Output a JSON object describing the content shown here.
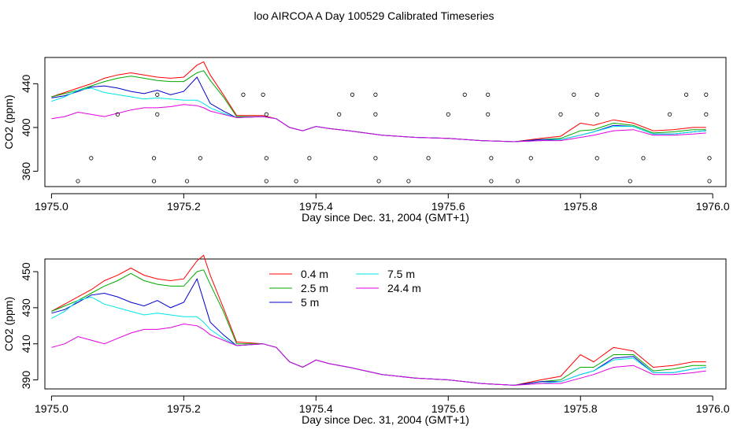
{
  "title": "loo AIRCOA A  Day 100529  Calibrated Timeseries",
  "chart_data": [
    {
      "type": "line",
      "xlabel": "Day since Dec. 31, 2004 (GMT+1)",
      "ylabel": "CO2 (ppm)",
      "xlim": [
        1974.99,
        1976.02
      ],
      "ylim": [
        346,
        464
      ],
      "xticks": [
        1975.0,
        1975.2,
        1975.4,
        1975.6,
        1975.8,
        1976.0
      ],
      "xtick_labels": [
        "1975.0",
        "1975.2",
        "1975.4",
        "1975.6",
        "1975.8",
        "1976.0"
      ],
      "yticks": [
        360,
        400,
        440
      ],
      "ytick_labels": [
        "360",
        "400",
        "440"
      ],
      "grid": false,
      "legend": "none",
      "series": [
        {
          "name": "0.4 m",
          "color": "#ff0000",
          "x": [
            1975.0,
            1975.02,
            1975.04,
            1975.06,
            1975.08,
            1975.1,
            1975.12,
            1975.14,
            1975.16,
            1975.18,
            1975.2,
            1975.22,
            1975.23,
            1975.24,
            1975.26,
            1975.28,
            1975.32,
            1975.34,
            1975.36,
            1975.38,
            1975.4,
            1975.42,
            1975.45,
            1975.5,
            1975.55,
            1975.6,
            1975.65,
            1975.7,
            1975.74,
            1975.77,
            1975.8,
            1975.82,
            1975.85,
            1975.88,
            1975.91,
            1975.94,
            1975.97,
            1975.99
          ],
          "y": [
            428,
            432,
            436,
            440,
            445,
            448,
            450,
            448,
            446,
            445,
            446,
            457,
            460,
            448,
            430,
            411,
            411,
            408,
            400,
            397,
            401,
            399,
            397,
            393,
            391,
            390,
            388,
            387,
            390,
            392,
            404,
            402,
            407,
            404,
            397,
            398,
            400,
            400
          ]
        },
        {
          "name": "2.5 m",
          "color": "#00aa00",
          "x": [
            1975.0,
            1975.02,
            1975.04,
            1975.06,
            1975.08,
            1975.1,
            1975.12,
            1975.14,
            1975.16,
            1975.18,
            1975.2,
            1975.22,
            1975.23,
            1975.24,
            1975.26,
            1975.28,
            1975.32,
            1975.34,
            1975.36,
            1975.38,
            1975.4,
            1975.42,
            1975.45,
            1975.5,
            1975.55,
            1975.6,
            1975.65,
            1975.7,
            1975.74,
            1975.77,
            1975.8,
            1975.82,
            1975.85,
            1975.88,
            1975.91,
            1975.94,
            1975.97,
            1975.99
          ],
          "y": [
            428,
            431,
            434,
            438,
            442,
            445,
            447,
            445,
            443,
            442,
            442,
            450,
            452,
            443,
            428,
            410,
            410,
            408,
            400,
            397,
            401,
            399,
            397,
            393,
            391,
            390,
            388,
            387,
            389,
            390,
            397,
            398,
            404,
            402,
            395,
            396,
            398,
            398
          ]
        },
        {
          "name": "5 m",
          "color": "#0000cc",
          "x": [
            1975.0,
            1975.02,
            1975.04,
            1975.06,
            1975.08,
            1975.1,
            1975.12,
            1975.14,
            1975.16,
            1975.18,
            1975.2,
            1975.22,
            1975.23,
            1975.24,
            1975.26,
            1975.28,
            1975.32,
            1975.34,
            1975.36,
            1975.38,
            1975.4,
            1975.42,
            1975.45,
            1975.5,
            1975.55,
            1975.6,
            1975.65,
            1975.7,
            1975.74,
            1975.77,
            1975.8,
            1975.82,
            1975.85,
            1975.88,
            1975.91,
            1975.94,
            1975.97,
            1975.99
          ],
          "y": [
            427,
            429,
            433,
            437,
            438,
            436,
            433,
            431,
            434,
            430,
            433,
            446,
            434,
            422,
            415,
            409,
            410,
            408,
            400,
            397,
            401,
            399,
            397,
            393,
            391,
            390,
            388,
            387,
            389,
            389,
            393,
            396,
            402,
            401,
            394,
            394,
            396,
            397
          ]
        },
        {
          "name": "7.5 m",
          "color": "#00e5e5",
          "x": [
            1975.0,
            1975.02,
            1975.04,
            1975.06,
            1975.08,
            1975.1,
            1975.12,
            1975.14,
            1975.16,
            1975.18,
            1975.2,
            1975.22,
            1975.23,
            1975.24,
            1975.26,
            1975.28,
            1975.32,
            1975.34,
            1975.36,
            1975.38,
            1975.4,
            1975.42,
            1975.45,
            1975.5,
            1975.55,
            1975.6,
            1975.65,
            1975.7,
            1975.74,
            1975.77,
            1975.8,
            1975.82,
            1975.85,
            1975.88,
            1975.91,
            1975.94,
            1975.97,
            1975.99
          ],
          "y": [
            424,
            428,
            434,
            436,
            432,
            430,
            428,
            426,
            427,
            426,
            425,
            425,
            422,
            418,
            413,
            409,
            410,
            408,
            400,
            397,
            401,
            399,
            397,
            393,
            391,
            390,
            388,
            387,
            388,
            389,
            393,
            396,
            401,
            401,
            394,
            394,
            396,
            397
          ]
        },
        {
          "name": "24.4 m",
          "color": "#e000e0",
          "x": [
            1975.0,
            1975.02,
            1975.04,
            1975.06,
            1975.08,
            1975.1,
            1975.12,
            1975.14,
            1975.16,
            1975.18,
            1975.2,
            1975.22,
            1975.23,
            1975.24,
            1975.26,
            1975.28,
            1975.32,
            1975.34,
            1975.36,
            1975.38,
            1975.4,
            1975.42,
            1975.45,
            1975.5,
            1975.55,
            1975.6,
            1975.65,
            1975.7,
            1975.74,
            1975.77,
            1975.8,
            1975.82,
            1975.85,
            1975.88,
            1975.91,
            1975.94,
            1975.97,
            1975.99
          ],
          "y": [
            408,
            410,
            414,
            412,
            410,
            413,
            416,
            418,
            418,
            419,
            421,
            420,
            418,
            415,
            412,
            409,
            410,
            408,
            400,
            397,
            401,
            399,
            397,
            393,
            391,
            390,
            388,
            387,
            388,
            388,
            391,
            393,
            397,
            398,
            393,
            393,
            394,
            395
          ]
        }
      ],
      "markers": {
        "shape": "circle-open",
        "x": [
          1975.04,
          1975.06,
          1975.1,
          1975.155,
          1975.155,
          1975.16,
          1975.16,
          1975.205,
          1975.225,
          1975.29,
          1975.32,
          1975.325,
          1975.325,
          1975.325,
          1975.37,
          1975.39,
          1975.435,
          1975.455,
          1975.49,
          1975.49,
          1975.49,
          1975.495,
          1975.54,
          1975.57,
          1975.6,
          1975.625,
          1975.66,
          1975.66,
          1975.665,
          1975.665,
          1975.705,
          1975.725,
          1975.77,
          1975.79,
          1975.825,
          1975.825,
          1975.825,
          1975.875,
          1975.895,
          1975.935,
          1975.96,
          1975.99,
          1975.99,
          1975.995,
          1975.995
        ],
        "y": [
          351,
          372,
          412,
          351,
          372,
          412,
          430,
          351,
          372,
          430,
          430,
          412,
          372,
          351,
          351,
          372,
          412,
          430,
          430,
          412,
          372,
          351,
          351,
          372,
          412,
          430,
          430,
          412,
          372,
          351,
          351,
          372,
          412,
          430,
          430,
          412,
          372,
          351,
          372,
          412,
          430,
          430,
          412,
          372,
          351
        ]
      }
    },
    {
      "type": "line",
      "xlabel": "Day since Dec. 31, 2004 (GMT+1)",
      "ylabel": "CO2 (ppm)",
      "xlim": [
        1974.99,
        1976.02
      ],
      "ylim": [
        385,
        457
      ],
      "xticks": [
        1975.0,
        1975.2,
        1975.4,
        1975.6,
        1975.8,
        1976.0
      ],
      "xtick_labels": [
        "1975.0",
        "1975.2",
        "1975.4",
        "1975.6",
        "1975.8",
        "1976.0"
      ],
      "yticks": [
        390,
        410,
        430,
        450
      ],
      "ytick_labels": [
        "390",
        "410",
        "430",
        "450"
      ],
      "grid": false,
      "legend": "top-center",
      "series": [
        {
          "name": "0.4 m",
          "color": "#ff0000",
          "x": [
            1975.0,
            1975.02,
            1975.04,
            1975.06,
            1975.08,
            1975.1,
            1975.12,
            1975.14,
            1975.16,
            1975.18,
            1975.2,
            1975.22,
            1975.23,
            1975.24,
            1975.26,
            1975.28,
            1975.32,
            1975.34,
            1975.36,
            1975.38,
            1975.4,
            1975.42,
            1975.45,
            1975.5,
            1975.55,
            1975.6,
            1975.65,
            1975.7,
            1975.74,
            1975.77,
            1975.8,
            1975.82,
            1975.85,
            1975.88,
            1975.91,
            1975.94,
            1975.97,
            1975.99
          ],
          "y": [
            428,
            432,
            436,
            440,
            445,
            448,
            452,
            448,
            446,
            445,
            446,
            456,
            459,
            448,
            430,
            411,
            410,
            408,
            400,
            397,
            401,
            399,
            397,
            393,
            391,
            390,
            388,
            387,
            390,
            392,
            404,
            400,
            408,
            406,
            397,
            398,
            400,
            400
          ]
        },
        {
          "name": "2.5 m",
          "color": "#00aa00",
          "x": [
            1975.0,
            1975.02,
            1975.04,
            1975.06,
            1975.08,
            1975.1,
            1975.12,
            1975.14,
            1975.16,
            1975.18,
            1975.2,
            1975.22,
            1975.23,
            1975.24,
            1975.26,
            1975.28,
            1975.32,
            1975.34,
            1975.36,
            1975.38,
            1975.4,
            1975.42,
            1975.45,
            1975.5,
            1975.55,
            1975.6,
            1975.65,
            1975.7,
            1975.74,
            1975.77,
            1975.8,
            1975.82,
            1975.85,
            1975.88,
            1975.91,
            1975.94,
            1975.97,
            1975.99
          ],
          "y": [
            428,
            431,
            434,
            438,
            442,
            445,
            449,
            445,
            443,
            442,
            442,
            450,
            451,
            443,
            428,
            410,
            410,
            408,
            400,
            397,
            401,
            399,
            397,
            393,
            391,
            390,
            388,
            387,
            389,
            390,
            397,
            397,
            404,
            404,
            395,
            396,
            398,
            398
          ]
        },
        {
          "name": "5 m",
          "color": "#0000cc",
          "x": [
            1975.0,
            1975.02,
            1975.04,
            1975.06,
            1975.08,
            1975.1,
            1975.12,
            1975.14,
            1975.16,
            1975.18,
            1975.2,
            1975.22,
            1975.23,
            1975.24,
            1975.26,
            1975.28,
            1975.32,
            1975.34,
            1975.36,
            1975.38,
            1975.4,
            1975.42,
            1975.45,
            1975.5,
            1975.55,
            1975.6,
            1975.65,
            1975.7,
            1975.74,
            1975.77,
            1975.8,
            1975.82,
            1975.85,
            1975.88,
            1975.91,
            1975.94,
            1975.97,
            1975.99
          ],
          "y": [
            427,
            429,
            433,
            437,
            438,
            436,
            433,
            431,
            434,
            430,
            433,
            446,
            434,
            422,
            415,
            409,
            410,
            408,
            400,
            397,
            401,
            399,
            397,
            393,
            391,
            390,
            388,
            387,
            389,
            389,
            393,
            395,
            402,
            403,
            394,
            394,
            396,
            397
          ]
        },
        {
          "name": "7.5 m",
          "color": "#00e5e5",
          "x": [
            1975.0,
            1975.02,
            1975.04,
            1975.06,
            1975.08,
            1975.1,
            1975.12,
            1975.14,
            1975.16,
            1975.18,
            1975.2,
            1975.22,
            1975.23,
            1975.24,
            1975.26,
            1975.28,
            1975.32,
            1975.34,
            1975.36,
            1975.38,
            1975.4,
            1975.42,
            1975.45,
            1975.5,
            1975.55,
            1975.6,
            1975.65,
            1975.7,
            1975.74,
            1975.77,
            1975.8,
            1975.82,
            1975.85,
            1975.88,
            1975.91,
            1975.94,
            1975.97,
            1975.99
          ],
          "y": [
            424,
            428,
            434,
            436,
            432,
            430,
            428,
            426,
            427,
            426,
            425,
            425,
            422,
            418,
            413,
            409,
            410,
            408,
            400,
            397,
            401,
            399,
            397,
            393,
            391,
            390,
            388,
            387,
            388,
            389,
            393,
            395,
            401,
            402,
            394,
            394,
            396,
            397
          ]
        },
        {
          "name": "24.4 m",
          "color": "#e000e0",
          "x": [
            1975.0,
            1975.02,
            1975.04,
            1975.06,
            1975.08,
            1975.1,
            1975.12,
            1975.14,
            1975.16,
            1975.18,
            1975.2,
            1975.22,
            1975.23,
            1975.24,
            1975.26,
            1975.28,
            1975.32,
            1975.34,
            1975.36,
            1975.38,
            1975.4,
            1975.42,
            1975.45,
            1975.5,
            1975.55,
            1975.6,
            1975.65,
            1975.7,
            1975.74,
            1975.77,
            1975.8,
            1975.82,
            1975.85,
            1975.88,
            1975.91,
            1975.94,
            1975.97,
            1975.99
          ],
          "y": [
            408,
            410,
            414,
            412,
            410,
            413,
            416,
            418,
            418,
            419,
            421,
            420,
            418,
            415,
            412,
            409,
            410,
            408,
            400,
            397,
            401,
            399,
            397,
            393,
            391,
            390,
            388,
            387,
            388,
            388,
            391,
            393,
            397,
            398,
            393,
            393,
            394,
            395
          ]
        }
      ]
    }
  ]
}
